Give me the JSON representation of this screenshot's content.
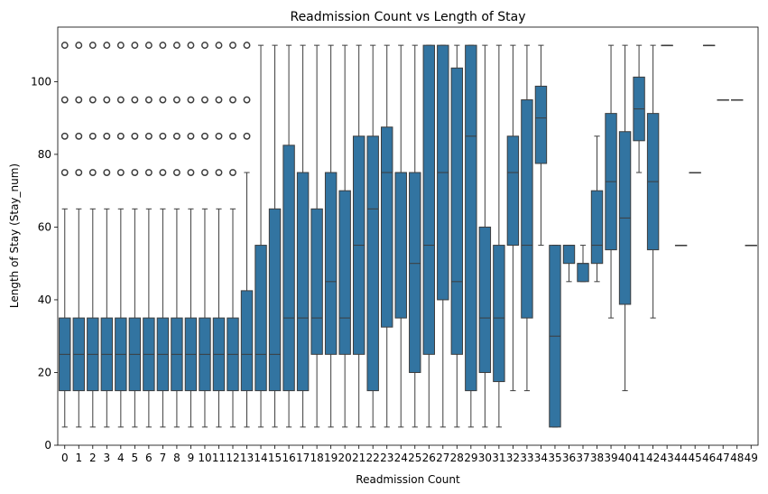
{
  "chart_data": {
    "type": "boxplot",
    "title": "Readmission Count vs Length of Stay",
    "xlabel": "Readmission Count",
    "ylabel": "Length of Stay (Stay_num)",
    "ylim": [
      0,
      115
    ],
    "yticks": [
      0,
      20,
      40,
      60,
      80,
      100
    ],
    "box_color": "#3274a1",
    "line_color": "#3d3d3d",
    "categories": [
      "0",
      "1",
      "2",
      "3",
      "4",
      "5",
      "6",
      "7",
      "8",
      "9",
      "10",
      "11",
      "12",
      "13",
      "14",
      "15",
      "16",
      "17",
      "18",
      "19",
      "20",
      "21",
      "22",
      "23",
      "24",
      "25",
      "26",
      "27",
      "28",
      "29",
      "30",
      "31",
      "32",
      "33",
      "34",
      "35",
      "36",
      "37",
      "38",
      "39",
      "40",
      "41",
      "42",
      "43",
      "44",
      "45",
      "46",
      "47",
      "48",
      "49"
    ],
    "boxes": [
      {
        "x": "0",
        "wlow": 5,
        "q1": 15,
        "median": 25,
        "q3": 35,
        "whigh": 65,
        "outliers": [
          75,
          85,
          95,
          110
        ]
      },
      {
        "x": "1",
        "wlow": 5,
        "q1": 15,
        "median": 25,
        "q3": 35,
        "whigh": 65,
        "outliers": [
          75,
          85,
          95,
          110
        ]
      },
      {
        "x": "2",
        "wlow": 5,
        "q1": 15,
        "median": 25,
        "q3": 35,
        "whigh": 65,
        "outliers": [
          75,
          85,
          95,
          110
        ]
      },
      {
        "x": "3",
        "wlow": 5,
        "q1": 15,
        "median": 25,
        "q3": 35,
        "whigh": 65,
        "outliers": [
          75,
          85,
          95,
          110
        ]
      },
      {
        "x": "4",
        "wlow": 5,
        "q1": 15,
        "median": 25,
        "q3": 35,
        "whigh": 65,
        "outliers": [
          75,
          85,
          95,
          110
        ]
      },
      {
        "x": "5",
        "wlow": 5,
        "q1": 15,
        "median": 25,
        "q3": 35,
        "whigh": 65,
        "outliers": [
          75,
          85,
          95,
          110
        ]
      },
      {
        "x": "6",
        "wlow": 5,
        "q1": 15,
        "median": 25,
        "q3": 35,
        "whigh": 65,
        "outliers": [
          75,
          85,
          95,
          110
        ]
      },
      {
        "x": "7",
        "wlow": 5,
        "q1": 15,
        "median": 25,
        "q3": 35,
        "whigh": 65,
        "outliers": [
          75,
          85,
          95,
          110
        ]
      },
      {
        "x": "8",
        "wlow": 5,
        "q1": 15,
        "median": 25,
        "q3": 35,
        "whigh": 65,
        "outliers": [
          75,
          85,
          95,
          110
        ]
      },
      {
        "x": "9",
        "wlow": 5,
        "q1": 15,
        "median": 25,
        "q3": 35,
        "whigh": 65,
        "outliers": [
          75,
          85,
          95,
          110
        ]
      },
      {
        "x": "10",
        "wlow": 5,
        "q1": 15,
        "median": 25,
        "q3": 35,
        "whigh": 65,
        "outliers": [
          75,
          85,
          95,
          110
        ]
      },
      {
        "x": "11",
        "wlow": 5,
        "q1": 15,
        "median": 25,
        "q3": 35,
        "whigh": 65,
        "outliers": [
          75,
          85,
          95,
          110
        ]
      },
      {
        "x": "12",
        "wlow": 5,
        "q1": 15,
        "median": 25,
        "q3": 35,
        "whigh": 65,
        "outliers": [
          75,
          85,
          95,
          110
        ]
      },
      {
        "x": "13",
        "wlow": 5,
        "q1": 15,
        "median": 25,
        "q3": 42.5,
        "whigh": 75,
        "outliers": [
          85,
          95,
          110
        ]
      },
      {
        "x": "14",
        "wlow": 5,
        "q1": 15,
        "median": 25,
        "q3": 55,
        "whigh": 110,
        "outliers": []
      },
      {
        "x": "15",
        "wlow": 5,
        "q1": 15,
        "median": 25,
        "q3": 65,
        "whigh": 110,
        "outliers": []
      },
      {
        "x": "16",
        "wlow": 5,
        "q1": 15,
        "median": 35,
        "q3": 82.5,
        "whigh": 110,
        "outliers": []
      },
      {
        "x": "17",
        "wlow": 5,
        "q1": 15,
        "median": 35,
        "q3": 75,
        "whigh": 110,
        "outliers": []
      },
      {
        "x": "18",
        "wlow": 5,
        "q1": 25,
        "median": 35,
        "q3": 65,
        "whigh": 110,
        "outliers": []
      },
      {
        "x": "19",
        "wlow": 5,
        "q1": 25,
        "median": 45,
        "q3": 75,
        "whigh": 110,
        "outliers": []
      },
      {
        "x": "20",
        "wlow": 5,
        "q1": 25,
        "median": 35,
        "q3": 70,
        "whigh": 110,
        "outliers": []
      },
      {
        "x": "21",
        "wlow": 5,
        "q1": 25,
        "median": 55,
        "q3": 85,
        "whigh": 110,
        "outliers": []
      },
      {
        "x": "22",
        "wlow": 5,
        "q1": 15,
        "median": 65,
        "q3": 85,
        "whigh": 110,
        "outliers": []
      },
      {
        "x": "23",
        "wlow": 5,
        "q1": 32.5,
        "median": 75,
        "q3": 87.5,
        "whigh": 110,
        "outliers": []
      },
      {
        "x": "24",
        "wlow": 5,
        "q1": 35,
        "median": 75,
        "q3": 75,
        "whigh": 110,
        "outliers": []
      },
      {
        "x": "25",
        "wlow": 5,
        "q1": 20,
        "median": 50,
        "q3": 75,
        "whigh": 110,
        "outliers": []
      },
      {
        "x": "26",
        "wlow": 5,
        "q1": 25,
        "median": 55,
        "q3": 110,
        "whigh": 110,
        "outliers": []
      },
      {
        "x": "27",
        "wlow": 5,
        "q1": 40,
        "median": 75,
        "q3": 110,
        "whigh": 110,
        "outliers": []
      },
      {
        "x": "28",
        "wlow": 5,
        "q1": 25,
        "median": 45,
        "q3": 103.75,
        "whigh": 110,
        "outliers": []
      },
      {
        "x": "29",
        "wlow": 5,
        "q1": 15,
        "median": 85,
        "q3": 110,
        "whigh": 110,
        "outliers": []
      },
      {
        "x": "30",
        "wlow": 5,
        "q1": 20,
        "median": 35,
        "q3": 60,
        "whigh": 110,
        "outliers": []
      },
      {
        "x": "31",
        "wlow": 5,
        "q1": 17.5,
        "median": 35,
        "q3": 55,
        "whigh": 110,
        "outliers": []
      },
      {
        "x": "32",
        "wlow": 15,
        "q1": 55,
        "median": 75,
        "q3": 85,
        "whigh": 110,
        "outliers": []
      },
      {
        "x": "33",
        "wlow": 15,
        "q1": 35,
        "median": 55,
        "q3": 95,
        "whigh": 110,
        "outliers": []
      },
      {
        "x": "34",
        "wlow": 55,
        "q1": 77.5,
        "median": 90,
        "q3": 98.75,
        "whigh": 110,
        "outliers": []
      },
      {
        "x": "35",
        "wlow": 5,
        "q1": 5,
        "median": 30,
        "q3": 55,
        "whigh": 55,
        "outliers": []
      },
      {
        "x": "36",
        "wlow": 45,
        "q1": 50,
        "median": 55,
        "q3": 55,
        "whigh": 55,
        "outliers": []
      },
      {
        "x": "37",
        "wlow": 45,
        "q1": 45,
        "median": 50,
        "q3": 50,
        "whigh": 55,
        "outliers": []
      },
      {
        "x": "38",
        "wlow": 45,
        "q1": 50,
        "median": 55,
        "q3": 70,
        "whigh": 85,
        "outliers": []
      },
      {
        "x": "39",
        "wlow": 35,
        "q1": 53.75,
        "median": 72.5,
        "q3": 91.25,
        "whigh": 110,
        "outliers": []
      },
      {
        "x": "40",
        "wlow": 15,
        "q1": 38.75,
        "median": 62.5,
        "q3": 86.25,
        "whigh": 110,
        "outliers": []
      },
      {
        "x": "41",
        "wlow": 75,
        "q1": 83.75,
        "median": 92.5,
        "q3": 101.25,
        "whigh": 110,
        "outliers": []
      },
      {
        "x": "42",
        "wlow": 35,
        "q1": 53.75,
        "median": 72.5,
        "q3": 91.25,
        "whigh": 110,
        "outliers": []
      },
      {
        "x": "43",
        "wlow": 110,
        "q1": 110,
        "median": 110,
        "q3": 110,
        "whigh": 110,
        "outliers": []
      },
      {
        "x": "44",
        "wlow": 55,
        "q1": 55,
        "median": 55,
        "q3": 55,
        "whigh": 55,
        "outliers": []
      },
      {
        "x": "45",
        "wlow": 75,
        "q1": 75,
        "median": 75,
        "q3": 75,
        "whigh": 75,
        "outliers": []
      },
      {
        "x": "46",
        "wlow": 110,
        "q1": 110,
        "median": 110,
        "q3": 110,
        "whigh": 110,
        "outliers": []
      },
      {
        "x": "47",
        "wlow": 95,
        "q1": 95,
        "median": 95,
        "q3": 95,
        "whigh": 95,
        "outliers": []
      },
      {
        "x": "48",
        "wlow": 95,
        "q1": 95,
        "median": 95,
        "q3": 95,
        "whigh": 95,
        "outliers": []
      },
      {
        "x": "49",
        "wlow": 55,
        "q1": 55,
        "median": 55,
        "q3": 55,
        "whigh": 55,
        "outliers": []
      }
    ],
    "grid": false,
    "legend": "none"
  }
}
